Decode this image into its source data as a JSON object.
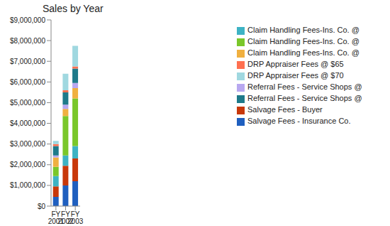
{
  "chart_data": {
    "type": "bar",
    "title": "Sales by Year",
    "stacked": true,
    "grid": false,
    "legend": "right",
    "categories": [
      "FY 2001",
      "FY 2002",
      "FY 2003"
    ],
    "ylim": [
      0,
      9000000
    ],
    "yticks": [
      {
        "value": 0,
        "label": "$0"
      },
      {
        "value": 1000000,
        "label": "$1,000,000"
      },
      {
        "value": 2000000,
        "label": "$2,000,000"
      },
      {
        "value": 3000000,
        "label": "$3,000,000"
      },
      {
        "value": 4000000,
        "label": "$4,000,000"
      },
      {
        "value": 5000000,
        "label": "$5,000,000"
      },
      {
        "value": 6000000,
        "label": "$6,000,000"
      },
      {
        "value": 7000000,
        "label": "$7,000,000"
      },
      {
        "value": 8000000,
        "label": "$8,000,000"
      },
      {
        "value": 9000000,
        "label": "$9,000,000"
      }
    ],
    "series": [
      {
        "name": "Salvage Fees - Insurance Co.",
        "color": "#1f5fbf",
        "values": [
          450000,
          1000000,
          1200000
        ]
      },
      {
        "name": "Salvage Fees - Buyer",
        "color": "#c8380a",
        "values": [
          500000,
          950000,
          1100000
        ]
      },
      {
        "name": "Claim Handling Fees-Ins. Co. @",
        "color": "#3db3c4",
        "values": [
          500000,
          500000,
          600000
        ]
      },
      {
        "name": "Claim Handling Fees-Ins. Co. @",
        "color": "#7ac72a",
        "values": [
          450000,
          1900000,
          2300000
        ]
      },
      {
        "name": "Claim Handling Fees-Ins. Co. @",
        "color": "#f0b040",
        "values": [
          450000,
          350000,
          500000
        ]
      },
      {
        "name": "Referral Fees - Service Shops @",
        "color": "#b8a8f0",
        "values": [
          100000,
          200000,
          250000
        ]
      },
      {
        "name": "Referral Fees - Service Shops @",
        "color": "#1e7a8a",
        "values": [
          450000,
          600000,
          700000
        ]
      },
      {
        "name": "DRP Appraiser Fees @ $65",
        "color": "#ff7050",
        "values": [
          100000,
          100000,
          100000
        ]
      },
      {
        "name": "DRP Appraiser Fees @ $70",
        "color": "#a0d8e0",
        "values": [
          150000,
          800000,
          1000000
        ]
      }
    ]
  }
}
